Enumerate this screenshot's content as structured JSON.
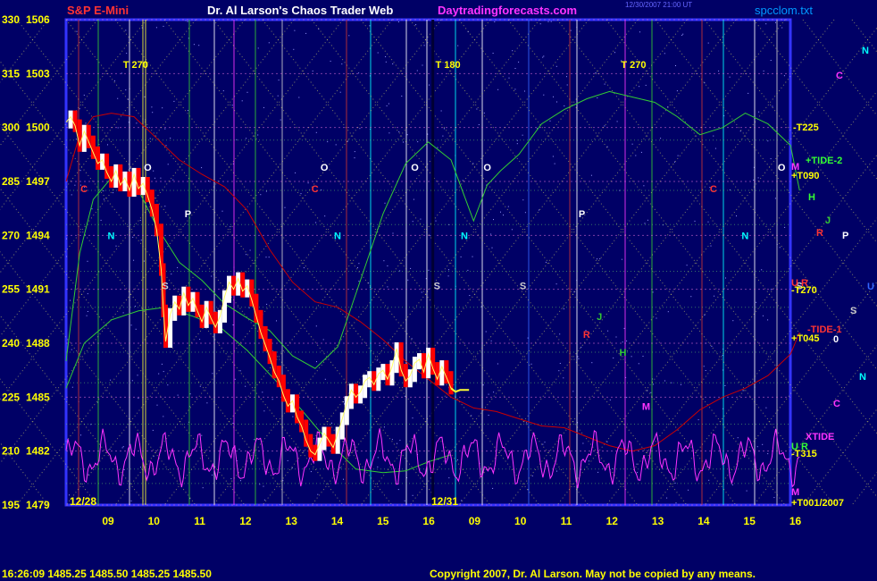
{
  "header": {
    "symbol": "S&P E-Mini",
    "site_title": "Dr. Al Larson's Chaos Trader Web",
    "site_url": "Daytradingforecasts.com",
    "timestamp_line1": "12/30/2007 21:00 UT",
    "timestamp_line2": "",
    "filename": "spcclom.txt"
  },
  "footer": {
    "quote": "16:26:09  1485.25 1485.50 1485.25 1485.50",
    "copyright": "Copyright 2007, Dr. Al Larson. May not be copied by any means."
  },
  "colors": {
    "background": "#000066",
    "frame": "#3333ff",
    "text_yellow": "#ffff00",
    "title_red": "#ff3333",
    "magenta": "#ff33ff",
    "green_line": "#33cc33",
    "red_line": "#cc0000",
    "price_up": "#ffffff",
    "price_down": "#ff0000"
  },
  "chart_data": {
    "type": "line",
    "title": "S&P E-Mini",
    "y_left_label_values": [
      330,
      315,
      300,
      285,
      270,
      255,
      240,
      225,
      210,
      195
    ],
    "y_price_labels": [
      1506,
      1503,
      1500,
      1497,
      1494,
      1491,
      1488,
      1485,
      1482,
      1479
    ],
    "ylim": [
      1479,
      1506
    ],
    "x_hour_labels": [
      "09",
      "10",
      "11",
      "12",
      "13",
      "14",
      "15",
      "16",
      "09",
      "10",
      "11",
      "12",
      "13",
      "14",
      "15",
      "16"
    ],
    "session_labels": [
      "12/28",
      "12/31"
    ],
    "vertical_time_marks": [
      {
        "label": "T 270",
        "hour_index": 1
      },
      {
        "label": "T 180",
        "hour_index": 7.9
      },
      {
        "label": "T 270",
        "hour_index": 12
      }
    ],
    "planet_letters": [
      {
        "t": "N",
        "h": 0.8,
        "p": 1493.8,
        "c": "#00ffff"
      },
      {
        "t": "C",
        "h": 0.2,
        "p": 1496.4,
        "c": "#ff3333"
      },
      {
        "t": "O",
        "h": 1.6,
        "p": 1497.6,
        "c": "#ffffff"
      },
      {
        "t": "P",
        "h": 2.5,
        "p": 1495.0,
        "c": "#ffffff"
      },
      {
        "t": "S",
        "h": 2,
        "p": 1491.0,
        "c": "#cccccc"
      },
      {
        "t": "C",
        "h": 5.3,
        "p": 1496.4,
        "c": "#ff3333"
      },
      {
        "t": "O",
        "h": 5.5,
        "p": 1497.6,
        "c": "#ffffff"
      },
      {
        "t": "N",
        "h": 5.8,
        "p": 1493.8,
        "c": "#00ffff"
      },
      {
        "t": "O",
        "h": 7.5,
        "p": 1497.6,
        "c": "#ffffff"
      },
      {
        "t": "S",
        "h": 8.0,
        "p": 1491.0,
        "c": "#cccccc"
      },
      {
        "t": "N",
        "h": 8.6,
        "p": 1493.8,
        "c": "#00ffff"
      },
      {
        "t": "O",
        "h": 9.1,
        "p": 1497.6,
        "c": "#ffffff"
      },
      {
        "t": "S",
        "h": 9.9,
        "p": 1491.0,
        "c": "#cccccc"
      },
      {
        "t": "P",
        "h": 11.2,
        "p": 1495.0,
        "c": "#ffffff"
      },
      {
        "t": "R",
        "h": 11.3,
        "p": 1488.3,
        "c": "#ff3333"
      },
      {
        "t": "J",
        "h": 11.6,
        "p": 1489.3,
        "c": "#33cc33"
      },
      {
        "t": "H",
        "h": 12.1,
        "p": 1487.3,
        "c": "#33cc33"
      },
      {
        "t": "M",
        "h": 12.6,
        "p": 1484.3,
        "c": "#ff33ff"
      },
      {
        "t": "C",
        "h": 14.1,
        "p": 1496.4,
        "c": "#ff3333"
      },
      {
        "t": "N",
        "h": 14.8,
        "p": 1493.8,
        "c": "#00ffff"
      },
      {
        "t": "O",
        "h": 15.6,
        "p": 1497.6,
        "c": "#ffffff"
      },
      {
        "t": "S",
        "h": 16.0,
        "p": 1491.0,
        "c": "#cccccc"
      }
    ],
    "right_labels": [
      {
        "t": "N",
        "x": 965,
        "y": 60,
        "c": "#00ffff"
      },
      {
        "t": "C",
        "x": 936,
        "y": 88,
        "c": "#ff33ff"
      },
      {
        "t": "-T225",
        "x": 888,
        "y": 146,
        "c": "#ffff00"
      },
      {
        "t": "+TIDE-2",
        "x": 902,
        "y": 183,
        "c": "#33ff33"
      },
      {
        "t": "M",
        "x": 886,
        "y": 190,
        "c": "#ff33ff"
      },
      {
        "t": "+T090",
        "x": 886,
        "y": 200,
        "c": "#ffff00"
      },
      {
        "t": "H",
        "x": 905,
        "y": 224,
        "c": "#33ff33"
      },
      {
        "t": "J",
        "x": 924,
        "y": 250,
        "c": "#33cc33"
      },
      {
        "t": "R",
        "x": 914,
        "y": 264,
        "c": "#ff3333"
      },
      {
        "t": "P",
        "x": 943,
        "y": 267,
        "c": "#ffffff"
      },
      {
        "t": "U R",
        "x": 886,
        "y": 320,
        "c": "#ff3333"
      },
      {
        "t": "U",
        "x": 971,
        "y": 324,
        "c": "#3366ff"
      },
      {
        "t": "-T270",
        "x": 886,
        "y": 328,
        "c": "#ffff00"
      },
      {
        "t": "S",
        "x": 952,
        "y": 351,
        "c": "#cccccc"
      },
      {
        "t": "-TIDE-1",
        "x": 904,
        "y": 372,
        "c": "#ff3333"
      },
      {
        "t": "+T045",
        "x": 886,
        "y": 382,
        "c": "#ffff00"
      },
      {
        "t": "0",
        "x": 933,
        "y": 383,
        "c": "#ffffff"
      },
      {
        "t": "N",
        "x": 962,
        "y": 425,
        "c": "#00ffff"
      },
      {
        "t": "C",
        "x": 933,
        "y": 455,
        "c": "#ff33ff"
      },
      {
        "t": "XTIDE",
        "x": 902,
        "y": 492,
        "c": "#ff33ff"
      },
      {
        "t": "U R",
        "x": 886,
        "y": 503,
        "c": "#33ff33"
      },
      {
        "t": "-T315",
        "x": 886,
        "y": 511,
        "c": "#ffff00"
      },
      {
        "t": "M",
        "x": 886,
        "y": 554,
        "c": "#ff33ff"
      },
      {
        "t": "+T001/2007",
        "x": 886,
        "y": 566,
        "c": "#ffff00"
      }
    ],
    "price_series_day1": [
      [
        0.0,
        1500.3
      ],
      [
        0.1,
        1500.6
      ],
      [
        0.2,
        1500.1
      ],
      [
        0.3,
        1499.0
      ],
      [
        0.4,
        1499.8
      ],
      [
        0.5,
        1499.2
      ],
      [
        0.6,
        1498.6
      ],
      [
        0.7,
        1498.0
      ],
      [
        0.8,
        1498.2
      ],
      [
        0.9,
        1497.5
      ],
      [
        1.0,
        1497.0
      ],
      [
        1.1,
        1497.6
      ],
      [
        1.2,
        1496.8
      ],
      [
        1.3,
        1497.2
      ],
      [
        1.4,
        1496.5
      ],
      [
        1.5,
        1497.4
      ],
      [
        1.6,
        1496.6
      ],
      [
        1.7,
        1496.9
      ],
      [
        1.8,
        1496.2
      ],
      [
        1.9,
        1495.4
      ],
      [
        2.0,
        1494.3
      ],
      [
        2.1,
        1492.1
      ],
      [
        2.15,
        1489.8
      ],
      [
        2.2,
        1488.1
      ],
      [
        2.3,
        1489.6
      ],
      [
        2.4,
        1490.3
      ],
      [
        2.5,
        1489.9
      ],
      [
        2.6,
        1490.8
      ],
      [
        2.7,
        1490.1
      ],
      [
        2.8,
        1490.5
      ],
      [
        2.9,
        1489.8
      ],
      [
        3.0,
        1489.2
      ],
      [
        3.1,
        1490.0
      ],
      [
        3.2,
        1489.4
      ],
      [
        3.3,
        1488.9
      ],
      [
        3.4,
        1489.5
      ],
      [
        3.5,
        1490.6
      ],
      [
        3.6,
        1491.4
      ],
      [
        3.7,
        1491.0
      ],
      [
        3.8,
        1491.6
      ],
      [
        3.9,
        1490.9
      ],
      [
        4.0,
        1491.2
      ],
      [
        4.1,
        1490.4
      ],
      [
        4.2,
        1489.5
      ],
      [
        4.3,
        1488.6
      ],
      [
        4.4,
        1487.9
      ],
      [
        4.5,
        1487.2
      ],
      [
        4.6,
        1486.4
      ],
      [
        4.7,
        1485.9
      ],
      [
        4.8,
        1485.1
      ],
      [
        4.9,
        1484.5
      ],
      [
        5.0,
        1484.8
      ],
      [
        5.1,
        1483.9
      ],
      [
        5.2,
        1483.4
      ],
      [
        5.3,
        1482.6
      ],
      [
        5.4,
        1482.0
      ],
      [
        5.5,
        1481.8
      ],
      [
        5.6,
        1482.4
      ],
      [
        5.7,
        1483.0
      ],
      [
        5.8,
        1482.6
      ],
      [
        5.9,
        1482.2
      ],
      [
        6.0,
        1483.0
      ],
      [
        6.1,
        1483.8
      ],
      [
        6.2,
        1484.7
      ],
      [
        6.3,
        1485.4
      ],
      [
        6.4,
        1485.0
      ],
      [
        6.5,
        1485.3
      ],
      [
        6.6,
        1485.9
      ],
      [
        6.7,
        1486.1
      ],
      [
        6.8,
        1485.7
      ],
      [
        6.9,
        1486.3
      ],
      [
        7.0,
        1486.5
      ],
      [
        7.1,
        1486.0
      ],
      [
        7.2,
        1486.7
      ],
      [
        7.3,
        1487.7
      ],
      [
        7.4,
        1486.5
      ],
      [
        7.5,
        1485.9
      ],
      [
        7.6,
        1486.2
      ],
      [
        7.7,
        1486.9
      ],
      [
        7.8,
        1487.1
      ],
      [
        7.9,
        1486.4
      ],
      [
        8.0,
        1487.4
      ],
      [
        8.1,
        1486.6
      ],
      [
        8.2,
        1486.0
      ],
      [
        8.3,
        1486.7
      ],
      [
        8.4,
        1486.1
      ],
      [
        8.5,
        1485.5
      ]
    ],
    "forecast_tail": [
      [
        8.5,
        1485.5
      ],
      [
        8.6,
        1485.3
      ],
      [
        8.7,
        1485.4
      ],
      [
        8.9,
        1485.4
      ]
    ],
    "green_curve": [
      [
        0,
        1487.0
      ],
      [
        0.3,
        1493.0
      ],
      [
        0.6,
        1496.0
      ],
      [
        1.0,
        1497.2
      ],
      [
        1.5,
        1497.0
      ],
      [
        2.0,
        1494.5
      ],
      [
        2.5,
        1492.5
      ],
      [
        3.0,
        1491.5
      ],
      [
        3.5,
        1490.2
      ],
      [
        4.0,
        1489.4
      ],
      [
        4.5,
        1488.7
      ],
      [
        5.0,
        1487.3
      ],
      [
        5.5,
        1486.6
      ],
      [
        6.0,
        1487.8
      ],
      [
        6.5,
        1491.5
      ],
      [
        7.0,
        1495.2
      ],
      [
        7.5,
        1498.0
      ],
      [
        8.0,
        1499.2
      ],
      [
        8.5,
        1498.2
      ],
      [
        9.0,
        1494.8
      ],
      [
        9.3,
        1496.8
      ],
      [
        9.6,
        1497.6
      ],
      [
        10.0,
        1498.5
      ],
      [
        10.5,
        1500.2
      ],
      [
        11.0,
        1501.0
      ],
      [
        11.5,
        1501.6
      ],
      [
        12.0,
        1502.0
      ],
      [
        12.5,
        1501.7
      ],
      [
        13.0,
        1501.4
      ],
      [
        13.5,
        1500.6
      ],
      [
        14.0,
        1499.6
      ],
      [
        14.5,
        1500.0
      ],
      [
        15.0,
        1500.8
      ],
      [
        15.5,
        1500.2
      ],
      [
        16.0,
        1499.0
      ],
      [
        16.2,
        1496.5
      ]
    ],
    "red_curve": [
      [
        0,
        1497.0
      ],
      [
        0.3,
        1499.6
      ],
      [
        0.6,
        1500.6
      ],
      [
        1.0,
        1500.8
      ],
      [
        1.5,
        1500.6
      ],
      [
        2.0,
        1499.4
      ],
      [
        2.5,
        1498.2
      ],
      [
        3.0,
        1497.4
      ],
      [
        3.5,
        1496.7
      ],
      [
        4.0,
        1495.4
      ],
      [
        4.5,
        1493.2
      ],
      [
        5.0,
        1491.4
      ],
      [
        5.5,
        1490.3
      ],
      [
        6.0,
        1490.0
      ],
      [
        6.5,
        1489.2
      ],
      [
        7.0,
        1488.2
      ],
      [
        7.5,
        1487.0
      ],
      [
        8.0,
        1486.0
      ],
      [
        8.5,
        1485.0
      ],
      [
        9.0,
        1484.4
      ],
      [
        9.5,
        1484.2
      ],
      [
        10.0,
        1483.8
      ],
      [
        10.5,
        1483.4
      ],
      [
        11.0,
        1483.3
      ],
      [
        11.5,
        1482.8
      ],
      [
        12.0,
        1482.3
      ],
      [
        12.5,
        1482.0
      ],
      [
        13.0,
        1482.3
      ],
      [
        13.5,
        1483.2
      ],
      [
        14.0,
        1484.3
      ],
      [
        14.5,
        1485.0
      ],
      [
        15.0,
        1485.5
      ],
      [
        15.5,
        1486.2
      ],
      [
        16.0,
        1487.4
      ],
      [
        16.2,
        1488.6
      ]
    ],
    "green_low_curve": [
      [
        0,
        1485.5
      ],
      [
        0.4,
        1488.0
      ],
      [
        1.0,
        1489.3
      ],
      [
        1.6,
        1489.8
      ],
      [
        2.2,
        1490.0
      ],
      [
        2.8,
        1489.5
      ],
      [
        3.4,
        1488.9
      ],
      [
        4.0,
        1487.6
      ],
      [
        4.6,
        1486.0
      ],
      [
        5.2,
        1484.3
      ],
      [
        5.8,
        1482.5
      ],
      [
        6.4,
        1481.0
      ],
      [
        7.0,
        1480.8
      ],
      [
        7.5,
        1480.9
      ],
      [
        8.0,
        1481.4
      ],
      [
        8.5,
        1481.8
      ]
    ]
  }
}
